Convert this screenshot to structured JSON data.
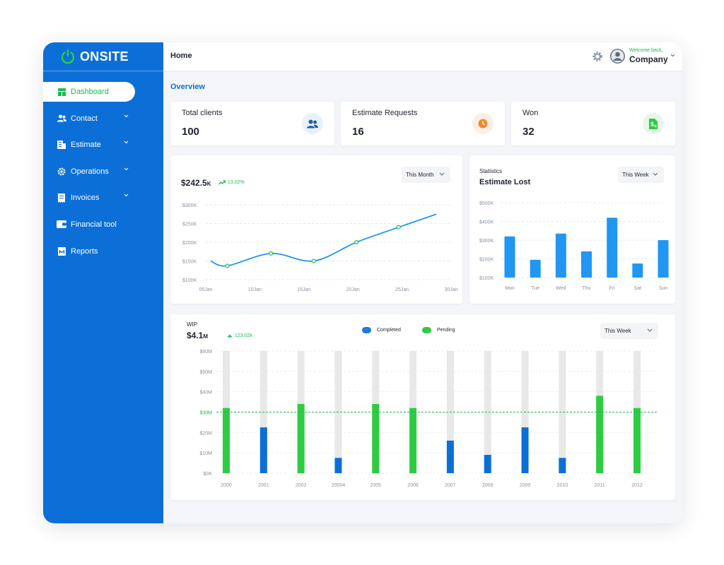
{
  "brand": {
    "name": "ONSITE"
  },
  "sidebar": {
    "items": [
      {
        "label": "Dashboard",
        "icon": "dashboard-icon",
        "active": true,
        "has_children": false
      },
      {
        "label": "Contact",
        "icon": "users-icon",
        "active": false,
        "has_children": true
      },
      {
        "label": "Estimate",
        "icon": "estimate-icon",
        "active": false,
        "has_children": true
      },
      {
        "label": "Operations",
        "icon": "operations-icon",
        "active": false,
        "has_children": true
      },
      {
        "label": "Invoices",
        "icon": "invoice-icon",
        "active": false,
        "has_children": true
      },
      {
        "label": "Financial tool",
        "icon": "wallet-icon",
        "active": false,
        "has_children": false
      },
      {
        "label": "Reports",
        "icon": "report-icon",
        "active": false,
        "has_children": false
      }
    ]
  },
  "header": {
    "title": "Home",
    "welcome": "Welcome back,",
    "user_name": "Company"
  },
  "overview": {
    "title": "Overview"
  },
  "stats": [
    {
      "label": "Total clients",
      "value": "100",
      "icon": "users-icon"
    },
    {
      "label": "Estimate Requests",
      "value": "16",
      "icon": "clock-icon"
    },
    {
      "label": "Won",
      "value": "32",
      "icon": "money-icon"
    }
  ],
  "revenue": {
    "amount": "$242.5",
    "unit": "K",
    "change": "13.02%",
    "period": "This Month"
  },
  "estimate_lost": {
    "label": "Statistics",
    "title": "Estimate Lost",
    "period": "This Week"
  },
  "wip": {
    "label": "WIP",
    "amount": "$4.1",
    "unit": "M",
    "change": "123.02k",
    "period": "This Week"
  },
  "colors": {
    "primary": "#0c6fd8",
    "accent_green": "#1db954",
    "chart_blue": "#2196f3",
    "completed": "#0c6fd8",
    "pending": "#2ecc40",
    "track": "#e8e8e8"
  },
  "chart_data": [
    {
      "id": "revenue",
      "type": "line",
      "x_labels": [
        "05Jan",
        "10Jan",
        "15Jan",
        "20Jan",
        "25Jan",
        "30Jan"
      ],
      "y_ticks": [
        "$100K",
        "$150K",
        "$200K",
        "$250K",
        "$300K"
      ],
      "ylim": [
        100,
        300
      ],
      "points": [
        {
          "x": 1.0,
          "y": 150
        },
        {
          "x": 4.4,
          "y": 137
        },
        {
          "x": 13.3,
          "y": 170
        },
        {
          "x": 22.0,
          "y": 150
        },
        {
          "x": 30.7,
          "y": 200
        },
        {
          "x": 39.3,
          "y": 240
        },
        {
          "x": 47.0,
          "y": 275
        }
      ],
      "markers": [
        {
          "x": 4.4,
          "y": 137
        },
        {
          "x": 13.3,
          "y": 170
        },
        {
          "x": 22.0,
          "y": 150
        },
        {
          "x": 30.7,
          "y": 200
        },
        {
          "x": 39.3,
          "y": 240
        }
      ],
      "grid": true
    },
    {
      "id": "estimate_lost",
      "type": "bar",
      "categories": [
        "Mon",
        "Tue",
        "Wed",
        "Thu",
        "Fri",
        "Sat",
        "Sun"
      ],
      "values": [
        320,
        195,
        335,
        240,
        420,
        175,
        300
      ],
      "y_ticks": [
        "$100K",
        "$200K",
        "$300K",
        "$400K",
        "$500K"
      ],
      "ylim": [
        100,
        500
      ],
      "grid": true
    },
    {
      "id": "wip",
      "type": "bar",
      "categories": [
        "2000",
        "2001",
        "2002",
        "20004",
        "2005",
        "2006",
        "2007",
        "2008",
        "2009",
        "2010",
        "2011",
        "2012"
      ],
      "series": [
        {
          "name": "Completed",
          "values": [
            null,
            22.5,
            null,
            7.5,
            null,
            null,
            16,
            9,
            22.5,
            7.5,
            null,
            null
          ]
        },
        {
          "name": "Pending",
          "values": [
            32,
            null,
            34,
            null,
            34,
            32,
            null,
            null,
            null,
            null,
            38,
            32
          ]
        }
      ],
      "track_max": 60,
      "y_ticks": [
        "$0K",
        "$10M",
        "$20M",
        "$30M",
        "$40M",
        "$50M",
        "$60M"
      ],
      "ylim": [
        0,
        60
      ],
      "reference_line": {
        "value": 30,
        "label": "$30M"
      },
      "legend": "top-center",
      "grid": true
    }
  ]
}
